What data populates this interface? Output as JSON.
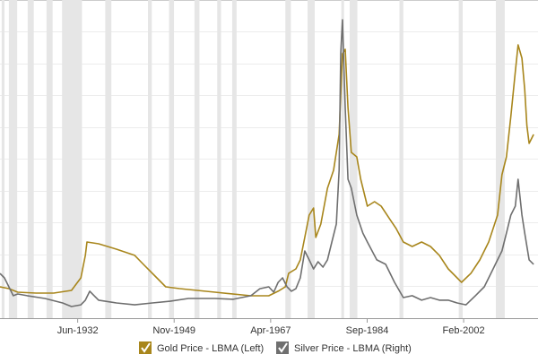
{
  "chart_data": {
    "type": "line",
    "x_ticks_note_free": null,
    "xlim": [
      1918.4,
      2015.5
    ],
    "xticks": [
      {
        "value": 1932.42,
        "label": "Jun-1932"
      },
      {
        "value": 1949.83,
        "label": "Nov-1949"
      },
      {
        "value": 1967.25,
        "label": "Apr-1967"
      },
      {
        "value": 1984.67,
        "label": "Sep-1984"
      },
      {
        "value": 2002.08,
        "label": "Feb-2002"
      }
    ],
    "ylim": [
      0,
      3000
    ],
    "y2lim": [
      0,
      150
    ],
    "recessions": [
      [
        1918.7,
        1919.2
      ],
      [
        1920.0,
        1921.5
      ],
      [
        1923.4,
        1924.5
      ],
      [
        1926.8,
        1927.9
      ],
      [
        1929.6,
        1933.2
      ],
      [
        1937.4,
        1938.5
      ],
      [
        1945.1,
        1945.8
      ],
      [
        1948.9,
        1949.8
      ],
      [
        1953.5,
        1954.4
      ],
      [
        1957.6,
        1958.3
      ],
      [
        1960.3,
        1961.1
      ],
      [
        1969.9,
        1970.9
      ],
      [
        1973.9,
        1975.2
      ],
      [
        1980.0,
        1980.5
      ],
      [
        1981.5,
        1982.9
      ],
      [
        1990.5,
        1991.2
      ],
      [
        2001.2,
        2001.9
      ],
      [
        2007.9,
        2009.5
      ]
    ],
    "series": [
      {
        "name": "Gold Price - LBMA (Left)",
        "color": "#a8861c",
        "axis": "y",
        "x": [
          1918.4,
          1920.0,
          1921.6,
          1924.9,
          1928.1,
          1931.3,
          1933.0,
          1933.8,
          1934.1,
          1936.2,
          1939.4,
          1942.7,
          1944.3,
          1946.7,
          1948.3,
          1950.8,
          1957.2,
          1963.7,
          1966.9,
          1968.6,
          1969.9,
          1970.5,
          1971.8,
          1972.6,
          1973.4,
          1974.2,
          1975.0,
          1975.4,
          1976.3,
          1977.5,
          1978.6,
          1979.6,
          1980.2,
          1980.7,
          1981.2,
          1981.8,
          1982.8,
          1983.5,
          1984.7,
          1986.0,
          1987.2,
          1988.8,
          1989.9,
          1991.2,
          1992.8,
          1994.5,
          1996.1,
          1997.7,
          1999.3,
          2000.9,
          2001.7,
          2003.4,
          2005.0,
          2006.6,
          2008.2,
          2009.0,
          2009.8,
          2010.6,
          2011.4,
          2011.9,
          2012.6,
          2013.1,
          2013.5,
          2013.9,
          2014.7
        ],
        "values": [
          296,
          279,
          245,
          237,
          237,
          262,
          380,
          592,
          718,
          701,
          651,
          592,
          507,
          380,
          296,
          279,
          245,
          211,
          211,
          254,
          296,
          423,
          465,
          549,
          761,
          972,
          1039,
          761,
          887,
          1225,
          1394,
          1732,
          2493,
          2535,
          1986,
          1563,
          1521,
          1310,
          1056,
          1099,
          1056,
          930,
          845,
          718,
          676,
          718,
          676,
          592,
          465,
          380,
          338,
          423,
          549,
          718,
          972,
          1352,
          1521,
          1901,
          2324,
          2577,
          2451,
          2155,
          1817,
          1648,
          1732
        ]
      },
      {
        "name": "Silver Price - LBMA (Right)",
        "color": "#6f6f6f",
        "axis": "y2",
        "x": [
          1918.4,
          1919.2,
          1920.0,
          1920.8,
          1921.6,
          1923.3,
          1926.5,
          1929.7,
          1931.3,
          1933.0,
          1933.8,
          1934.6,
          1935.4,
          1936.2,
          1939.4,
          1942.7,
          1945.9,
          1949.1,
          1952.4,
          1957.2,
          1960.5,
          1963.7,
          1965.3,
          1966.9,
          1967.8,
          1968.6,
          1969.4,
          1970.2,
          1971.0,
          1971.8,
          1972.6,
          1973.4,
          1974.2,
          1975.0,
          1975.8,
          1976.7,
          1977.5,
          1978.3,
          1979.1,
          1979.6,
          1979.9,
          1980.2,
          1980.7,
          1981.2,
          1981.8,
          1982.8,
          1983.9,
          1984.7,
          1986.4,
          1988.0,
          1989.6,
          1991.2,
          1992.8,
          1994.5,
          1996.1,
          1997.7,
          1999.3,
          2000.9,
          2002.5,
          2004.2,
          2005.8,
          2007.4,
          2008.2,
          2009.0,
          2009.8,
          2010.6,
          2011.4,
          2011.9,
          2012.6,
          2013.1,
          2013.9,
          2014.7
        ],
        "values": [
          21.1,
          19.0,
          14.8,
          10.6,
          11.4,
          10.6,
          9.3,
          7.2,
          5.5,
          6.3,
          8.5,
          12.7,
          10.6,
          8.5,
          7.2,
          6.3,
          7.2,
          8.0,
          9.3,
          9.3,
          8.9,
          10.6,
          13.9,
          14.8,
          12.3,
          16.9,
          19.0,
          14.8,
          12.7,
          13.9,
          19.0,
          31.7,
          27.5,
          23.2,
          26.6,
          24.1,
          27.5,
          35.9,
          44.4,
          69.7,
          124.6,
          140.7,
          99.3,
          65.5,
          61.3,
          48.6,
          40.1,
          35.9,
          27.5,
          25.4,
          16.9,
          9.7,
          10.6,
          8.5,
          9.7,
          8.5,
          8.5,
          7.2,
          6.3,
          10.6,
          14.8,
          23.2,
          27.5,
          31.7,
          40.1,
          48.6,
          52.8,
          65.5,
          48.6,
          40.1,
          27.5,
          25.4
        ]
      }
    ]
  }
}
